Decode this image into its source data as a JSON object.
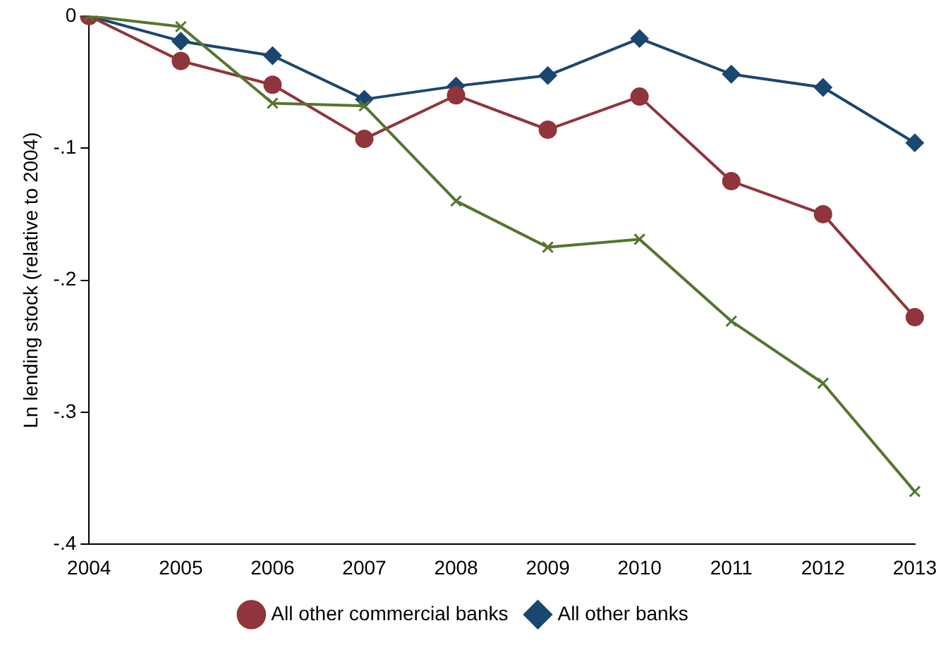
{
  "chart_data": {
    "type": "line",
    "ylabel": "Ln lending stock (relative to 2004)",
    "categories": [
      "2004",
      "2005",
      "2006",
      "2007",
      "2008",
      "2009",
      "2010",
      "2011",
      "2012",
      "2013"
    ],
    "series": [
      {
        "name": "All other banks",
        "color": "#1a476f",
        "marker": "diamond",
        "values": [
          0,
          -0.019,
          -0.03,
          -0.063,
          -0.053,
          -0.045,
          -0.017,
          -0.044,
          -0.054,
          -0.096
        ]
      },
      {
        "name": "All other commercial banks",
        "color": "#90353b",
        "marker": "circle",
        "values": [
          0,
          -0.034,
          -0.052,
          -0.093,
          -0.06,
          -0.086,
          -0.061,
          -0.125,
          -0.15,
          -0.228
        ]
      },
      {
        "color": "#55752f",
        "marker": "cross",
        "values": [
          0,
          -0.008,
          -0.066,
          -0.068,
          -0.14,
          -0.175,
          -0.169,
          -0.231,
          -0.278,
          -0.36
        ]
      }
    ],
    "ylim": [
      -0.4,
      0
    ],
    "yticks": [
      {
        "value": -0.4,
        "label": "-.4"
      },
      {
        "value": -0.3,
        "label": "-.3"
      },
      {
        "value": -0.2,
        "label": "-.2"
      },
      {
        "value": -0.1,
        "label": "-.1"
      },
      0
    ],
    "grid": false,
    "legend": "bottom"
  }
}
